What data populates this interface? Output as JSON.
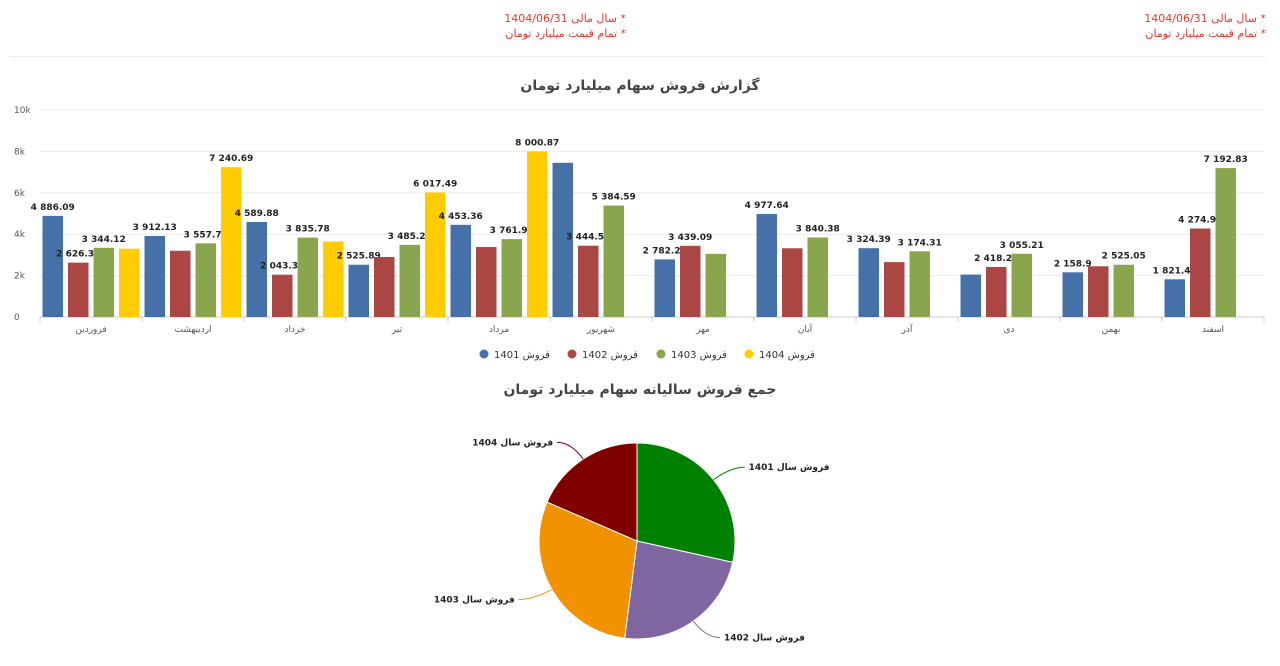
{
  "notes": {
    "left": [
      "* سال مالی 1404/06/31",
      "* تمام قیمت میلیارد تومان"
    ],
    "right": [
      "* سال مالی 1404/06/31",
      "* تمام قیمت میلیارد تومان"
    ]
  },
  "colors": {
    "s1401": "#4670a8",
    "s1402": "#aa4643",
    "s1403": "#89a54e",
    "s1404": "#ffcc00",
    "pie1401": "#008000",
    "pie1402": "#8066a0",
    "pie1403": "#f29200",
    "pie1404": "#800000"
  },
  "chart_data": [
    {
      "type": "bar",
      "title": "گزارش فروش سهام میلیارد تومان",
      "categories": [
        "فروردین",
        "اردیبهشت",
        "خرداد",
        "تیر",
        "مرداد",
        "شهریور",
        "مهر",
        "آبان",
        "آذر",
        "دی",
        "بهمن",
        "اسفند"
      ],
      "series": [
        {
          "name": "فروش 1401",
          "values": [
            4886.09,
            3912.13,
            4589.88,
            2525.89,
            4453.36,
            7450,
            2782.25,
            4977.64,
            3324.39,
            2050,
            2158.9,
            1821.49
          ]
        },
        {
          "name": "فروش 1402",
          "values": [
            2626.32,
            3200,
            2043.36,
            2900,
            3380,
            3444.58,
            3439.09,
            3320,
            2650,
            2418.23,
            2450,
            4274.94
          ]
        },
        {
          "name": "فروش 1403",
          "values": [
            3344.12,
            3557.78,
            3835.78,
            3485.22,
            3761.93,
            5384.59,
            3050,
            3840.38,
            3174.31,
            3055.21,
            2525.05,
            7192.83
          ]
        },
        {
          "name": "فروش 1404",
          "values": [
            3300,
            7240.69,
            3650,
            6017.49,
            8000.87,
            null,
            null,
            null,
            null,
            null,
            null,
            null
          ]
        }
      ],
      "labels": [
        [
          "4 886.09",
          "3 912.13",
          "4 589.88",
          "2 525.89",
          "4 453.36",
          "",
          "2 782.25",
          "4 977.64",
          "3 324.39",
          "",
          "2 158.9",
          "1 821.49"
        ],
        [
          "2 626.32",
          "",
          "2 043.36",
          "",
          "",
          "3 444.58",
          "3 439.09",
          "",
          "",
          "2 418.23",
          "",
          "4 274.94"
        ],
        [
          "3 344.12",
          "3 557.78",
          "3 835.78",
          "3 485.22",
          "3 761.93",
          "5 384.59",
          "",
          "3 840.38",
          "3 174.31",
          "3 055.21",
          "2 525.05",
          "7 192.83"
        ],
        [
          "",
          "7 240.69",
          "",
          "6 017.49",
          "8 000.87",
          "",
          "",
          "",
          "",
          "",
          "",
          ""
        ]
      ],
      "yticks": [
        "0",
        "2k",
        "4k",
        "6k",
        "8k",
        "10k"
      ],
      "ylim": [
        0,
        10000
      ],
      "legend_position": "bottom",
      "grid": true
    },
    {
      "type": "pie",
      "title": "جمع فروش سالیانه سهام میلیارد تومان",
      "labels": [
        "فروش سال 1401",
        "فروش سال 1402",
        "فروش سال 1403",
        "فروش سال 1404"
      ],
      "values": [
        28.5,
        23.5,
        29.5,
        18.5
      ]
    }
  ]
}
